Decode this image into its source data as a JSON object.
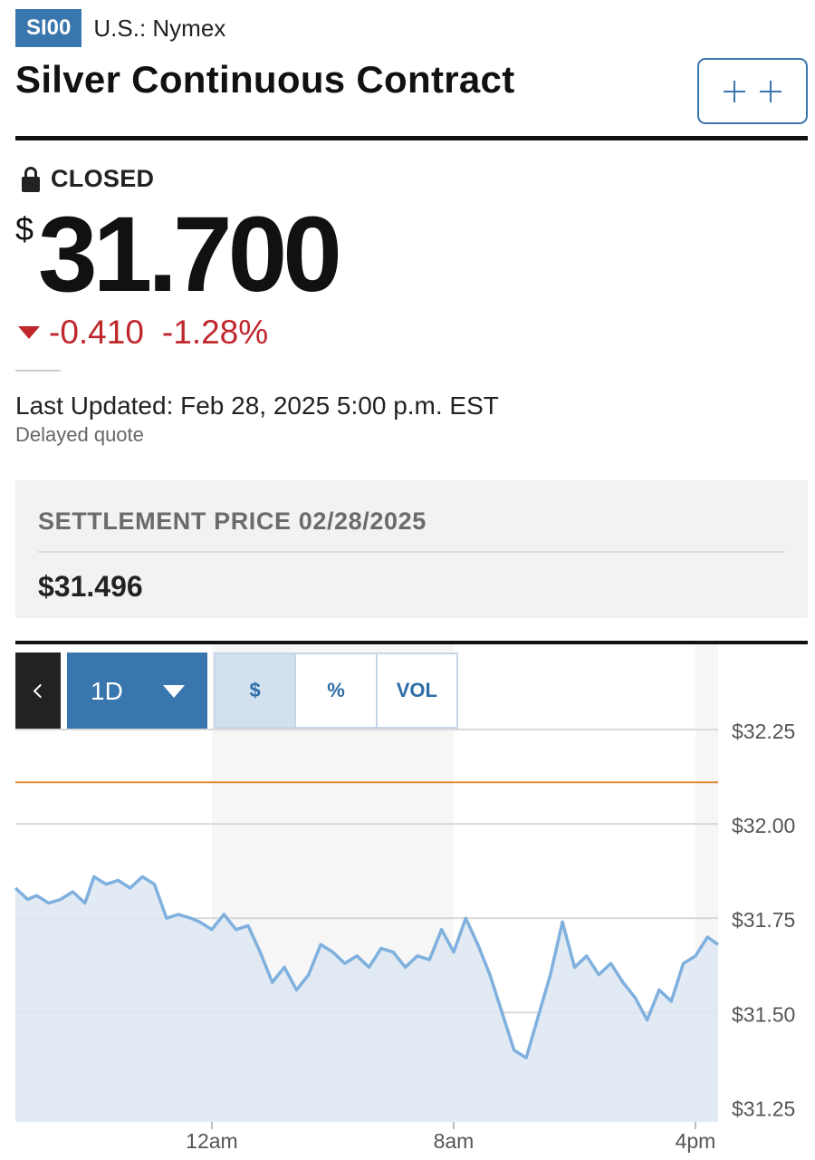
{
  "header": {
    "ticker": "SI00",
    "exchange": "U.S.: Nymex",
    "title": "Silver Continuous Contract",
    "watchlist_button": "+ +"
  },
  "quote": {
    "status": "CLOSED",
    "currency_symbol": "$",
    "price": "31.700",
    "change": "-0.410",
    "change_percent": "-1.28%",
    "direction": "down",
    "last_updated": "Last Updated: Feb 28, 2025 5:00 p.m. EST",
    "delay_note": "Delayed quote"
  },
  "settlement": {
    "label": "SETTLEMENT PRICE 02/28/2025",
    "value": "$31.496"
  },
  "chart_controls": {
    "back_icon": "chevron-left-icon",
    "range_label": "1D",
    "toggles": [
      "$",
      "%",
      "VOL"
    ],
    "selected_toggle": "$"
  },
  "colors": {
    "brand_blue": "#3a76ae",
    "negative": "#c0272d",
    "line": "#7fb0de",
    "area": "#dde8f2",
    "reference_line": "#e08a3c"
  },
  "chart_data": {
    "type": "area",
    "x_tick_labels": [
      "12am",
      "8am",
      "4pm"
    ],
    "y_tick_labels": [
      "$32.25",
      "$32.00",
      "$31.75",
      "$31.50",
      "$31.25"
    ],
    "y_ticks": [
      32.25,
      32.0,
      31.75,
      31.5,
      31.25
    ],
    "ylim": [
      31.21,
      32.25
    ],
    "x_range_hours": [
      -6.5,
      16.75
    ],
    "reference_line": {
      "value": 32.11
    },
    "series": [
      {
        "x": [
          -6.5,
          -6.1,
          -5.8,
          -5.4,
          -5.0,
          -4.6,
          -4.2,
          -3.9,
          -3.5,
          -3.1,
          -2.7,
          -2.3,
          -1.9,
          -1.5,
          -1.1,
          -0.7,
          -0.4,
          0.0,
          0.4,
          0.8,
          1.2,
          1.6,
          2.0,
          2.4,
          2.8,
          3.2,
          3.6,
          4.0,
          4.4,
          4.8,
          5.2,
          5.6,
          6.0,
          6.4,
          6.8,
          7.2,
          7.6,
          8.0,
          8.4,
          8.8,
          9.2,
          9.6,
          10.0,
          10.4,
          10.8,
          11.2,
          11.6,
          12.0,
          12.4,
          12.8,
          13.2,
          13.6,
          14.0,
          14.4,
          14.8,
          15.2,
          15.6,
          16.0,
          16.4,
          16.75
        ],
        "y": [
          31.83,
          31.8,
          31.81,
          31.79,
          31.8,
          31.82,
          31.79,
          31.86,
          31.84,
          31.85,
          31.83,
          31.86,
          31.84,
          31.75,
          31.76,
          31.75,
          31.74,
          31.72,
          31.76,
          31.72,
          31.73,
          31.66,
          31.58,
          31.62,
          31.56,
          31.6,
          31.68,
          31.66,
          31.63,
          31.65,
          31.62,
          31.67,
          31.66,
          31.62,
          31.65,
          31.64,
          31.72,
          31.66,
          31.75,
          31.68,
          31.6,
          31.5,
          31.4,
          31.38,
          31.49,
          31.6,
          31.74,
          31.62,
          31.65,
          31.6,
          31.63,
          31.58,
          31.54,
          31.48,
          31.56,
          31.53,
          31.63,
          31.65,
          31.7,
          31.68
        ]
      }
    ]
  }
}
